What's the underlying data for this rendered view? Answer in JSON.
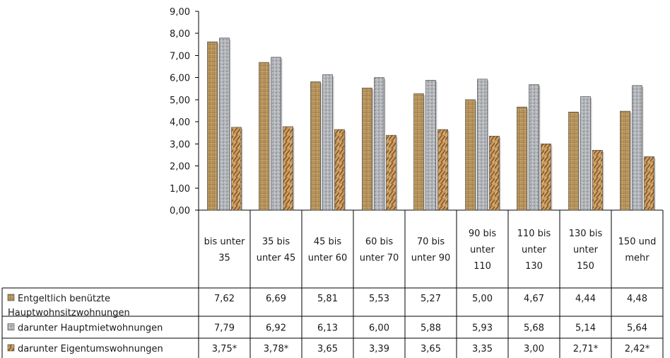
{
  "chart_data": {
    "type": "bar",
    "categories": [
      [
        "bis unter",
        "35"
      ],
      [
        "35 bis",
        "unter 45"
      ],
      [
        "45 bis",
        "unter 60"
      ],
      [
        "60 bis",
        "unter 70"
      ],
      [
        "70 bis",
        "unter 90"
      ],
      [
        "90 bis",
        "unter",
        "110"
      ],
      [
        "110 bis",
        "unter",
        "130"
      ],
      [
        "130 bis",
        "unter",
        "150"
      ],
      [
        "150 und",
        "mehr"
      ]
    ],
    "series": [
      {
        "name": [
          "Entgeltlich benützte",
          "Hauptwohnsitzwohnungen"
        ],
        "values": [
          7.62,
          6.69,
          5.81,
          5.53,
          5.27,
          5.0,
          4.67,
          4.44,
          4.48
        ],
        "labels": [
          "7,62",
          "6,69",
          "5,81",
          "5,53",
          "5,27",
          "5,00",
          "4,67",
          "4,44",
          "4,48"
        ],
        "color": "#c9a56b"
      },
      {
        "name": [
          "darunter Hauptmietwohnungen"
        ],
        "values": [
          7.79,
          6.92,
          6.13,
          6.0,
          5.88,
          5.93,
          5.68,
          5.14,
          5.64
        ],
        "labels": [
          "7,79",
          "6,92",
          "6,13",
          "6,00",
          "5,88",
          "5,93",
          "5,68",
          "5,14",
          "5,64"
        ],
        "color": "#a9acb0"
      },
      {
        "name": [
          "darunter Eigentumswohnungen"
        ],
        "values": [
          3.75,
          3.78,
          3.65,
          3.39,
          3.65,
          3.35,
          3.0,
          2.71,
          2.42
        ],
        "labels": [
          "3,75*",
          "3,78*",
          "3,65",
          "3,39",
          "3,65",
          "3,35",
          "3,00",
          "2,71*",
          "2,42*"
        ],
        "color": "#c08a4a"
      }
    ],
    "ylim": [
      0,
      9
    ],
    "yticks": [
      "0,00",
      "1,00",
      "2,00",
      "3,00",
      "4,00",
      "5,00",
      "6,00",
      "7,00",
      "8,00",
      "9,00"
    ],
    "grid": false,
    "legend": "data table with legend keys"
  }
}
